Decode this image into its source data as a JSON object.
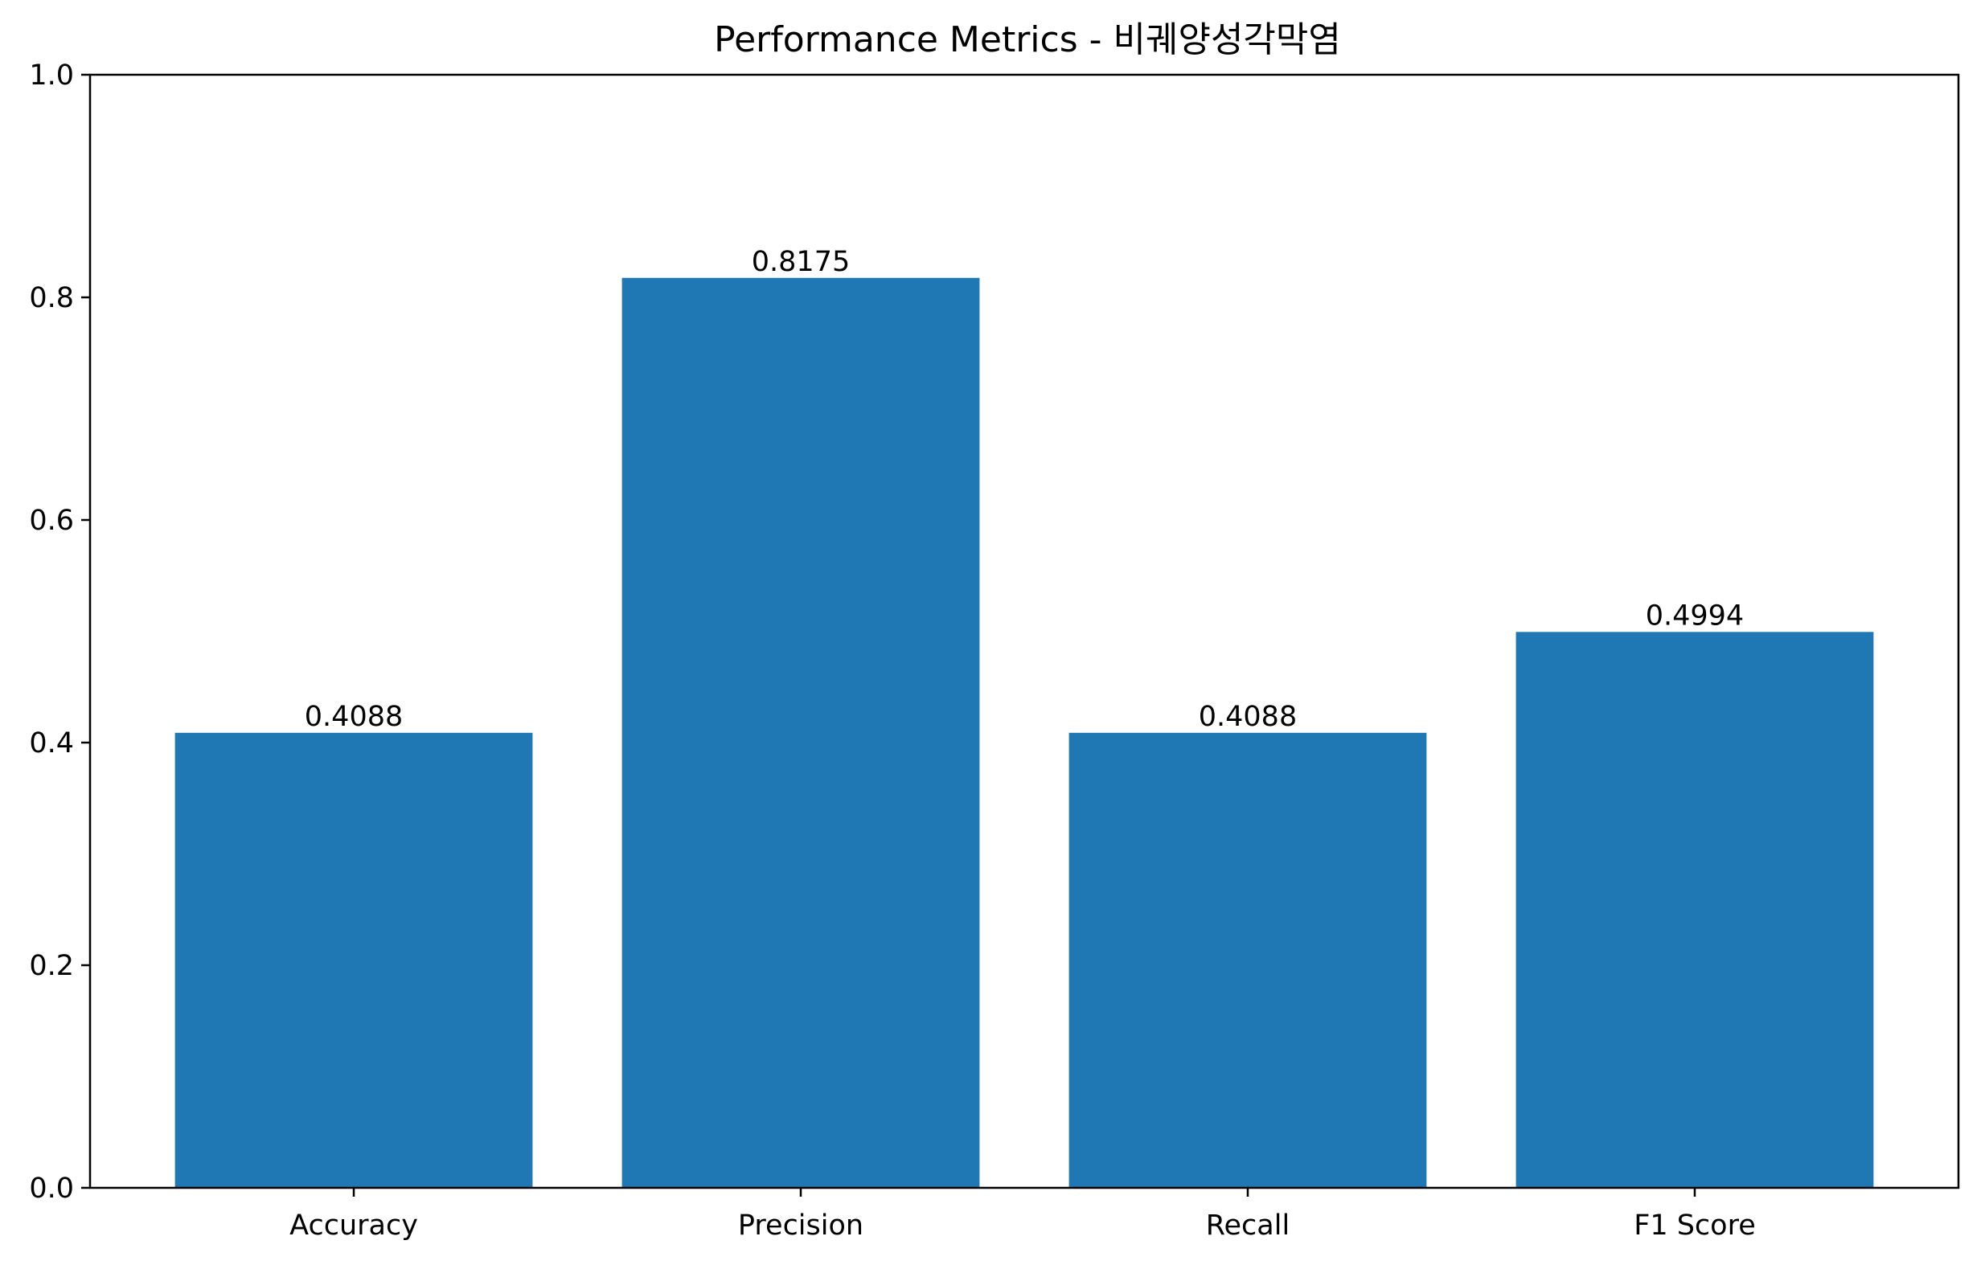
{
  "chart_data": {
    "type": "bar",
    "title": "Performance Metrics - 비궤양성각막염",
    "xlabel": "",
    "ylabel": "",
    "categories": [
      "Accuracy",
      "Precision",
      "Recall",
      "F1 Score"
    ],
    "values": [
      0.4088,
      0.8175,
      0.4088,
      0.4994
    ],
    "value_labels": [
      "0.4088",
      "0.8175",
      "0.4088",
      "0.4994"
    ],
    "ylim": [
      0,
      1.0
    ],
    "yticks": [
      0.0,
      0.2,
      0.4,
      0.6,
      0.8,
      1.0
    ],
    "ytick_labels": [
      "0.0",
      "0.2",
      "0.4",
      "0.6",
      "0.8",
      "1.0"
    ],
    "grid": false,
    "bar_color": "#1f77b4"
  }
}
